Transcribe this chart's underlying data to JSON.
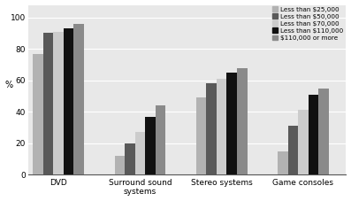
{
  "categories": [
    "DVD",
    "Surround sound\nsystems",
    "Stereo systems",
    "Game consoles"
  ],
  "series_labels": [
    "Less than $25,000",
    "Less than $50,000",
    "Less than $70,000",
    "Less than $110,000",
    "$110,000 or more"
  ],
  "series_colors": [
    "#b2b2b2",
    "#595959",
    "#cccccc",
    "#111111",
    "#8a8a8a"
  ],
  "values": [
    [
      77,
      12,
      49,
      15
    ],
    [
      90,
      20,
      58,
      31
    ],
    [
      91,
      27,
      61,
      41
    ],
    [
      93,
      37,
      65,
      51
    ],
    [
      96,
      44,
      68,
      55
    ]
  ],
  "ylabel": "%",
  "ylim": [
    0,
    108
  ],
  "yticks": [
    0,
    20,
    40,
    60,
    80,
    100
  ],
  "bar_width": 0.1,
  "group_centers": [
    0.28,
    1.08,
    1.88,
    2.68
  ],
  "background_color": "#ffffff"
}
